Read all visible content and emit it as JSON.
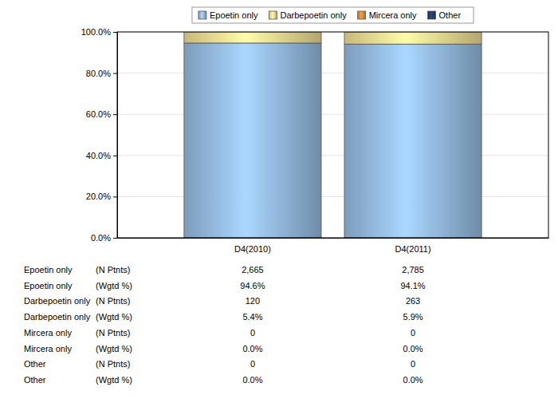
{
  "chart_data": {
    "type": "bar",
    "stacked": true,
    "grid": true,
    "legend": "top",
    "categories": [
      "D4(2010)",
      "D4(2011)"
    ],
    "ylim": [
      0,
      100
    ],
    "yticks": [
      {
        "value": 0,
        "label": "0.0%"
      },
      {
        "value": 20,
        "label": "20.0%"
      },
      {
        "value": 40,
        "label": "40.0%"
      },
      {
        "value": 60,
        "label": "60.0%"
      },
      {
        "value": 80,
        "label": "80.0%"
      },
      {
        "value": 100,
        "label": "100.0%"
      }
    ],
    "table": {
      "count_label": "(N Ptnts)",
      "percent_label": "(Wgtd %)"
    },
    "series": [
      {
        "name": "Epoetin only",
        "color": "#8fb4d9",
        "values": [
          94.6,
          94.1
        ],
        "value_labels": [
          "94.6%",
          "94.1%"
        ],
        "counts": [
          2665,
          2785
        ],
        "count_labels": [
          "2,665",
          "2,785"
        ]
      },
      {
        "name": "Darbepoetin only",
        "color": "#e8d48c",
        "values": [
          5.4,
          5.9
        ],
        "value_labels": [
          "5.4%",
          "5.9%"
        ],
        "counts": [
          120,
          263
        ],
        "count_labels": [
          "120",
          "263"
        ]
      },
      {
        "name": "Mircera only",
        "color": "#d9862e",
        "values": [
          0.0,
          0.0
        ],
        "value_labels": [
          "0.0%",
          "0.0%"
        ],
        "counts": [
          0,
          0
        ],
        "count_labels": [
          "0",
          "0"
        ]
      },
      {
        "name": "Other",
        "color": "#1f3d6b",
        "values": [
          0.0,
          0.0
        ],
        "value_labels": [
          "0.0%",
          "0.0%"
        ],
        "counts": [
          0,
          0
        ],
        "count_labels": [
          "0",
          "0"
        ]
      }
    ]
  }
}
